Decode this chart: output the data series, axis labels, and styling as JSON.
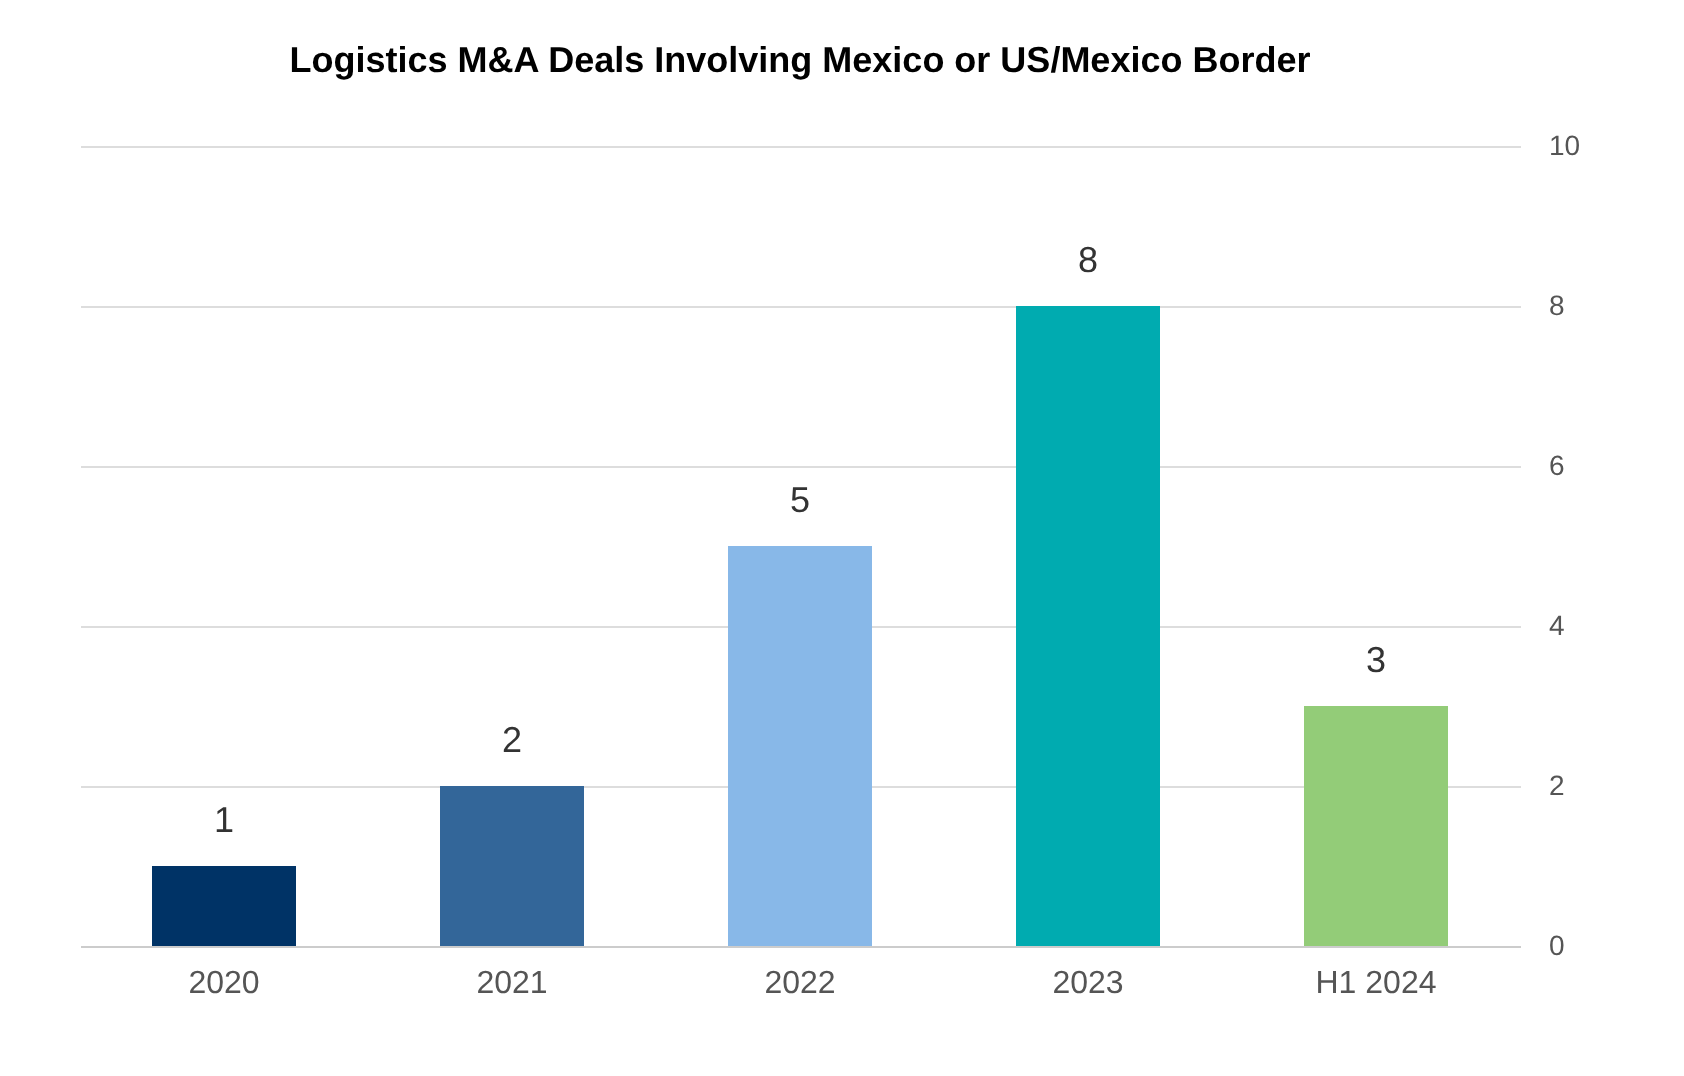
{
  "chart_data": {
    "type": "bar",
    "title": "Logistics M&A Deals Involving Mexico or US/Mexico Border",
    "categories": [
      "2020",
      "2021",
      "2022",
      "2023",
      "H1 2024"
    ],
    "values": [
      1,
      2,
      5,
      8,
      3
    ],
    "colors": [
      "#003366",
      "#336699",
      "#88b8e8",
      "#00abb0",
      "#93cc78"
    ],
    "ylim": [
      0,
      10
    ],
    "yticks": [
      0,
      2,
      4,
      6,
      8,
      10
    ],
    "grid": "y",
    "data_labels": true
  }
}
